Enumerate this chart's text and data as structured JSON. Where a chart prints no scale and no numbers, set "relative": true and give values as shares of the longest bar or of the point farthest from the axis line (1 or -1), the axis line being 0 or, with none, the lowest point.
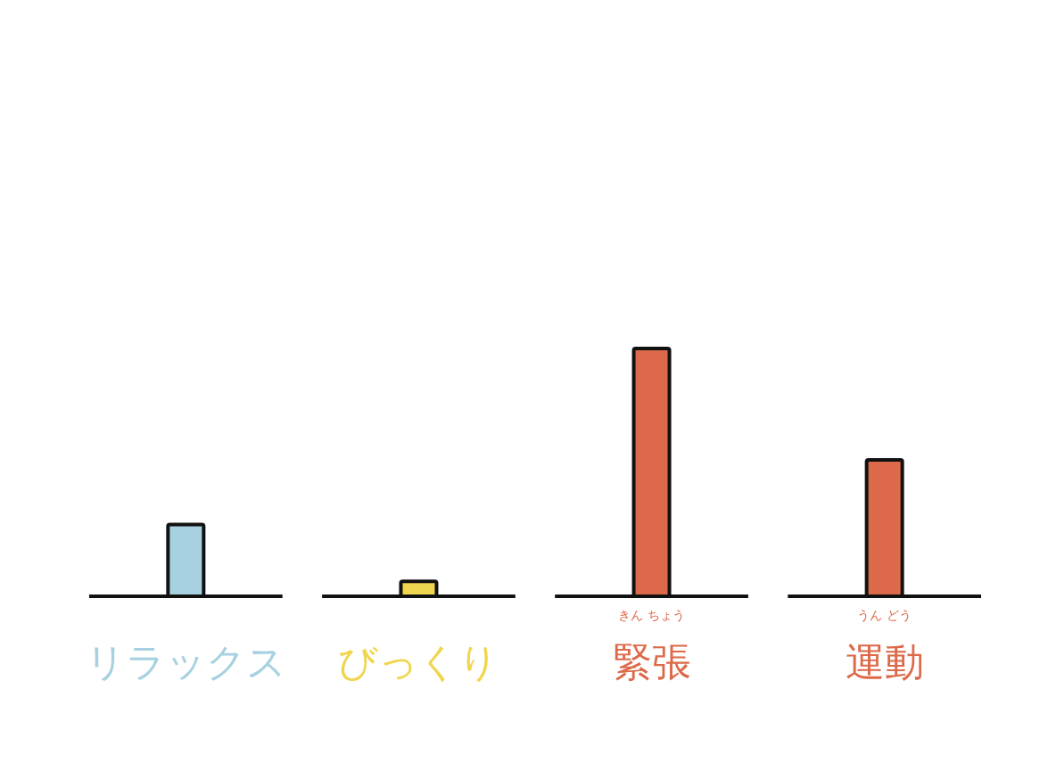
{
  "chart_data": {
    "type": "bar",
    "relative": true,
    "categories": [
      "リラックス",
      "びっくり",
      "緊張",
      "運動"
    ],
    "values": [
      0.29,
      0.06,
      1,
      0.55
    ],
    "colors": [
      "#a7d1e0",
      "#f0d54e",
      "#dc6a4a",
      "#dc6a4a"
    ],
    "annotations": [
      "きん ちょう",
      "うん どう"
    ]
  }
}
